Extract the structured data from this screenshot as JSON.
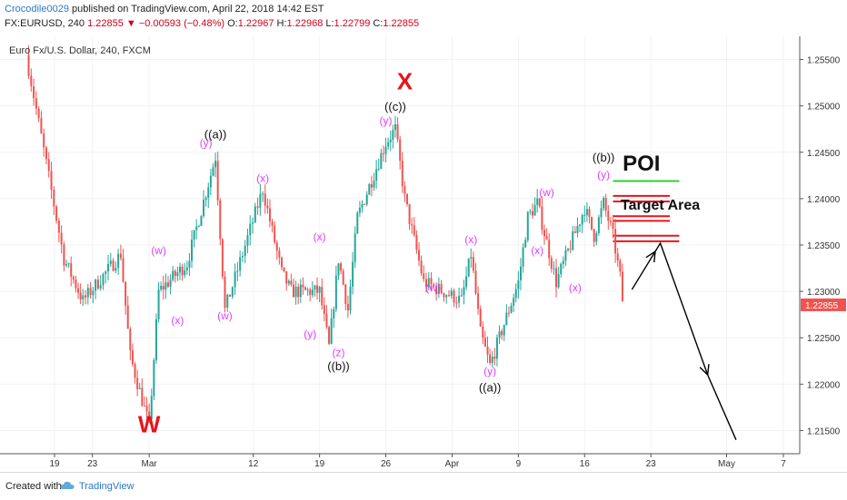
{
  "header": {
    "author": "Crocodile0029",
    "published_text": " published on TradingView.com, April 22, 2018 14:42 EST",
    "symbol": "FX:EURUSD, 240",
    "last": " 1.22855 ",
    "change_arrow": "▼",
    "change": " −0.00593 (−0.48%) ",
    "o_label": "O:",
    "o_value": "1.22967",
    "h_label": " H:",
    "h_value": "1.22968",
    "l_label": " L:",
    "l_value": "1.22799",
    "c_label": " C:",
    "c_value": "1.22855"
  },
  "footer": {
    "created": "Created with",
    "brand": "TradingView"
  },
  "colors": {
    "up": "#26a69a",
    "down": "#ef5350",
    "wave_pink": "#e040fb",
    "wave_black": "#111111",
    "wave_red": "#e8141b",
    "poi_green": "#33cc33",
    "zone_red": "#e8141b"
  },
  "chart_data": {
    "type": "candlestick",
    "title": "Euro Fx/U.S. Dollar, 240, FXCM",
    "x_ticks": [
      "19",
      "23",
      "Mar",
      "12",
      "19",
      "26",
      "Apr",
      "9",
      "16",
      "23",
      "May",
      "7"
    ],
    "y_ticks": [
      "1.25500",
      "1.25000",
      "1.24500",
      "1.24000",
      "1.23500",
      "1.23000",
      "1.22500",
      "1.22000",
      "1.21500"
    ],
    "ylim": [
      1.2125,
      1.2575
    ],
    "current_price": "1.22855",
    "swing_points": [
      {
        "date": "2018-02-16",
        "price": 1.2555
      },
      {
        "date": "2018-02-20",
        "price": 1.2335
      },
      {
        "date": "2018-02-22",
        "price": 1.229
      },
      {
        "date": "2018-02-26",
        "price": 1.234
      },
      {
        "date": "2018-02-27",
        "price": 1.223
      },
      {
        "date": "2018-03-01",
        "price": 1.2155
      },
      {
        "date": "2018-03-02",
        "price": 1.23
      },
      {
        "date": "2018-03-05",
        "price": 1.233
      },
      {
        "date": "2018-03-08",
        "price": 1.2445
      },
      {
        "date": "2018-03-09",
        "price": 1.228
      },
      {
        "date": "2018-03-13",
        "price": 1.241
      },
      {
        "date": "2018-03-15",
        "price": 1.232
      },
      {
        "date": "2018-03-16",
        "price": 1.23
      },
      {
        "date": "2018-03-19",
        "price": 1.23
      },
      {
        "date": "2018-03-20",
        "price": 1.224
      },
      {
        "date": "2018-03-21",
        "price": 1.2335
      },
      {
        "date": "2018-03-22",
        "price": 1.228
      },
      {
        "date": "2018-03-23",
        "price": 1.238
      },
      {
        "date": "2018-03-26",
        "price": 1.246
      },
      {
        "date": "2018-03-27",
        "price": 1.2475
      },
      {
        "date": "2018-03-28",
        "price": 1.24
      },
      {
        "date": "2018-03-30",
        "price": 1.231
      },
      {
        "date": "2018-04-03",
        "price": 1.229
      },
      {
        "date": "2018-04-04",
        "price": 1.234
      },
      {
        "date": "2018-04-05",
        "price": 1.2255
      },
      {
        "date": "2018-04-06",
        "price": 1.222
      },
      {
        "date": "2018-04-09",
        "price": 1.231
      },
      {
        "date": "2018-04-10",
        "price": 1.238
      },
      {
        "date": "2018-04-11",
        "price": 1.2395
      },
      {
        "date": "2018-04-13",
        "price": 1.231
      },
      {
        "date": "2018-04-16",
        "price": 1.239
      },
      {
        "date": "2018-04-17",
        "price": 1.236
      },
      {
        "date": "2018-04-18",
        "price": 1.2395
      },
      {
        "date": "2018-04-19",
        "price": 1.236
      },
      {
        "date": "2018-04-20",
        "price": 1.23
      },
      {
        "date": "2018-04-20",
        "price": 1.2286
      }
    ],
    "labels": [
      {
        "text": "W",
        "style": "big-red",
        "date": "2018-03-01",
        "price": 1.2148
      },
      {
        "text": "X",
        "style": "big-red",
        "date": "2018-03-28",
        "price": 1.2518
      },
      {
        "text": "POI",
        "style": "poi",
        "date": "2018-04-22",
        "price": 1.243
      },
      {
        "text": "Target Area",
        "style": "target",
        "date": "2018-04-24",
        "price": 1.2388
      },
      {
        "text": "((a))",
        "style": "black",
        "date": "2018-03-08",
        "price": 1.2465
      },
      {
        "text": "((c))",
        "style": "black",
        "date": "2018-03-27",
        "price": 1.2495
      },
      {
        "text": "((b))",
        "style": "black",
        "date": "2018-03-21",
        "price": 1.2215
      },
      {
        "text": "((a))",
        "style": "black",
        "date": "2018-04-06",
        "price": 1.2192
      },
      {
        "text": "((b))",
        "style": "black",
        "date": "2018-04-18",
        "price": 1.244
      },
      {
        "text": "(y)",
        "style": "pink",
        "date": "2018-03-07",
        "price": 1.2456
      },
      {
        "text": "(w)",
        "style": "pink",
        "date": "2018-03-02",
        "price": 1.234
      },
      {
        "text": "(x)",
        "style": "pink",
        "date": "2018-03-04",
        "price": 1.2265
      },
      {
        "text": "(x)",
        "style": "pink",
        "date": "2018-03-13",
        "price": 1.2418
      },
      {
        "text": "(w)",
        "style": "pink",
        "date": "2018-03-09",
        "price": 1.227
      },
      {
        "text": "(x)",
        "style": "pink",
        "date": "2018-03-19",
        "price": 1.2355
      },
      {
        "text": "(y)",
        "style": "pink",
        "date": "2018-03-18",
        "price": 1.225
      },
      {
        "text": "(z)",
        "style": "pink",
        "date": "2018-03-21",
        "price": 1.223
      },
      {
        "text": "(y)",
        "style": "pink",
        "date": "2018-03-26",
        "price": 1.248
      },
      {
        "text": "(x)",
        "style": "pink",
        "date": "2018-04-04",
        "price": 1.2352
      },
      {
        "text": "(w)",
        "style": "pink",
        "date": "2018-03-31",
        "price": 1.23
      },
      {
        "text": "(y)",
        "style": "pink",
        "date": "2018-04-06",
        "price": 1.221
      },
      {
        "text": "(w)",
        "style": "pink",
        "date": "2018-04-12",
        "price": 1.2403
      },
      {
        "text": "(x)",
        "style": "pink",
        "date": "2018-04-11",
        "price": 1.234
      },
      {
        "text": "(x)",
        "style": "pink",
        "date": "2018-04-15",
        "price": 1.23
      },
      {
        "text": "(y)",
        "style": "pink",
        "date": "2018-04-18",
        "price": 1.2422
      }
    ],
    "zones": [
      {
        "name": "poi-line",
        "color": "green",
        "price": 1.2419,
        "from": "2018-04-19",
        "to": "2018-04-26"
      },
      {
        "name": "zone-1a",
        "color": "red",
        "price": 1.2403,
        "from": "2018-04-19",
        "to": "2018-04-25"
      },
      {
        "name": "zone-1b",
        "color": "red",
        "price": 1.2397,
        "from": "2018-04-19",
        "to": "2018-04-25"
      },
      {
        "name": "zone-2a",
        "color": "red",
        "price": 1.2381,
        "from": "2018-04-19",
        "to": "2018-04-25"
      },
      {
        "name": "zone-2b",
        "color": "red",
        "price": 1.2376,
        "from": "2018-04-19",
        "to": "2018-04-25"
      },
      {
        "name": "zone-3a",
        "color": "red",
        "price": 1.236,
        "from": "2018-04-19",
        "to": "2018-04-26"
      },
      {
        "name": "zone-3b",
        "color": "red",
        "price": 1.2354,
        "from": "2018-04-19",
        "to": "2018-04-26"
      }
    ],
    "projection": [
      {
        "date": "2018-04-21",
        "price": 1.2302
      },
      {
        "date": "2018-04-24",
        "price": 1.2352
      },
      {
        "date": "2018-04-29",
        "price": 1.221
      },
      {
        "date": "2018-05-02",
        "price": 1.214
      }
    ]
  }
}
